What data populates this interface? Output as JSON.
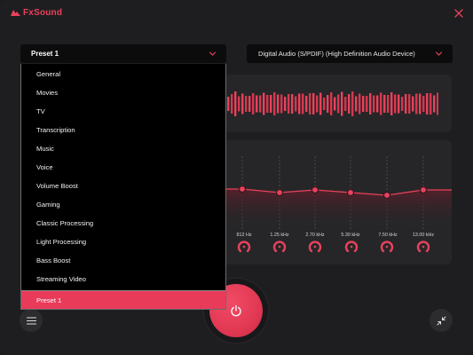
{
  "app": {
    "brand": "FxSound"
  },
  "preset": {
    "selected": "Preset 1"
  },
  "device": {
    "selected": "Digital Audio (S/PDIF) (High Definition Audio Device)"
  },
  "dropdown": {
    "items": [
      "General",
      "Movies",
      "TV",
      "Transcription",
      "Music",
      "Voice",
      "Volume Boost",
      "Gaming",
      "Classic Processing",
      "Light Processing",
      "Bass Boost",
      "Streaming Video",
      "Preset 1"
    ],
    "selected_index": 12
  },
  "equalizer": {
    "bands": [
      {
        "label": "812 Hz"
      },
      {
        "label": "1.25 kHz"
      },
      {
        "label": "2.70 kHz"
      },
      {
        "label": "5.30 kHz"
      },
      {
        "label": "7.50 kHz"
      },
      {
        "label": "13.00 kHz"
      }
    ]
  },
  "icons": {
    "logo": "fxsound-logo-icon",
    "close": "close-icon",
    "chevron": "chevron-down-icon",
    "menu": "hamburger-menu-icon",
    "collapse": "collapse-arrows-icon",
    "power": "power-icon"
  },
  "colors": {
    "accent": "#e8425c",
    "background": "#1e1e20",
    "panel": "#262628"
  }
}
